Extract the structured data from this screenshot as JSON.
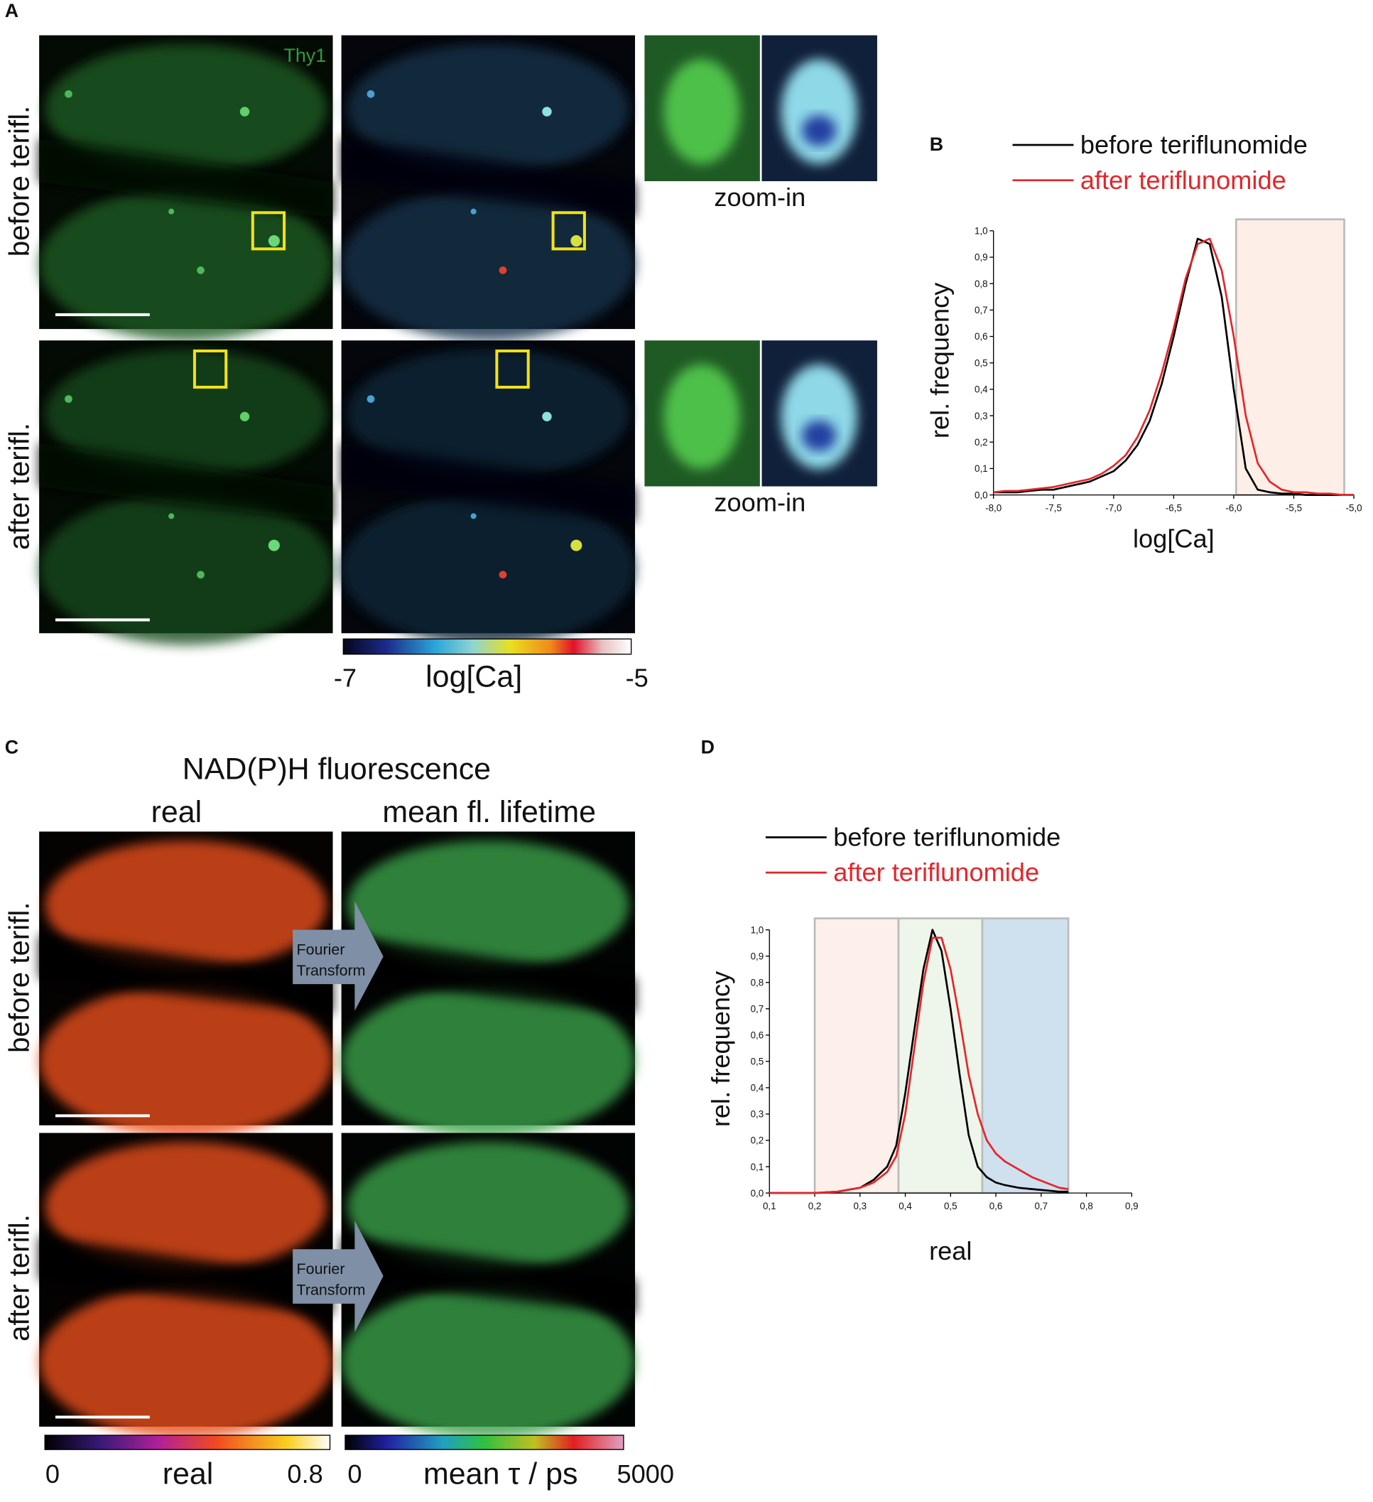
{
  "panel_a": {
    "label": "A",
    "stain": "Thy1",
    "rows": [
      "before terifl.",
      "after terifl."
    ],
    "zoom": [
      "zoom-in",
      "zoom-in"
    ],
    "colorbar": {
      "min": "-7",
      "title": "log[Ca]",
      "max": "-5"
    }
  },
  "panel_c": {
    "label": "C",
    "title": "NAD(P)H fluorescence",
    "columns": [
      "real",
      "mean fl. lifetime"
    ],
    "rows": [
      "before terifl.",
      "after terifl."
    ],
    "arrows": [
      [
        "Fourier",
        "Transform"
      ],
      [
        "Fourier",
        "Transform"
      ]
    ],
    "colorbars": [
      {
        "min": "0",
        "title": "real",
        "max": "0.8"
      },
      {
        "min": "0",
        "title": "mean τ / ps",
        "max": "5000"
      }
    ]
  },
  "chart_data": [
    {
      "type": "line",
      "panel_label": "B",
      "xlabel": "log[Ca]",
      "ylabel": "rel. frequency",
      "x": [
        -8.0,
        -7.9,
        -7.8,
        -7.7,
        -7.6,
        -7.5,
        -7.4,
        -7.3,
        -7.2,
        -7.1,
        -7.0,
        -6.9,
        -6.8,
        -6.7,
        -6.6,
        -6.5,
        -6.4,
        -6.3,
        -6.2,
        -6.1,
        -6.0,
        -5.9,
        -5.8,
        -5.7,
        -5.6,
        -5.5,
        -5.4,
        -5.3,
        -5.2,
        -5.1,
        -5.0
      ],
      "series": [
        {
          "name": "before teriflunomide",
          "color": "#000000",
          "values": [
            0.01,
            0.01,
            0.01,
            0.015,
            0.02,
            0.02,
            0.03,
            0.04,
            0.05,
            0.07,
            0.09,
            0.13,
            0.19,
            0.28,
            0.42,
            0.6,
            0.8,
            0.97,
            0.95,
            0.75,
            0.4,
            0.1,
            0.02,
            0.01,
            0.005,
            0.005,
            0,
            0,
            0,
            0,
            0
          ]
        },
        {
          "name": "after teriflunomide",
          "color": "#e3262b",
          "values": [
            0.01,
            0.015,
            0.015,
            0.02,
            0.025,
            0.03,
            0.04,
            0.05,
            0.06,
            0.08,
            0.11,
            0.15,
            0.22,
            0.32,
            0.46,
            0.63,
            0.82,
            0.95,
            0.97,
            0.85,
            0.6,
            0.3,
            0.12,
            0.05,
            0.02,
            0.01,
            0.01,
            0.005,
            0.005,
            0,
            0
          ]
        }
      ],
      "xlim": [
        -8,
        -5
      ],
      "ylim": [
        0,
        1
      ],
      "xticks": [
        {
          "value": -8,
          "label": "-8,0"
        },
        {
          "value": -7.5,
          "label": "-7,5"
        },
        {
          "value": -7,
          "label": "-7,0"
        },
        {
          "value": -6.5,
          "label": "-6,5"
        },
        {
          "value": -6,
          "label": "-6,0"
        },
        {
          "value": -5.5,
          "label": "-5,5"
        },
        {
          "value": -5,
          "label": "-5,0"
        }
      ],
      "yticks": [
        {
          "value": 0,
          "label": "0,0"
        },
        {
          "value": 0.1,
          "label": "0,1"
        },
        {
          "value": 0.2,
          "label": "0,2"
        },
        {
          "value": 0.3,
          "label": "0,3"
        },
        {
          "value": 0.4,
          "label": "0,4"
        },
        {
          "value": 0.5,
          "label": "0,5"
        },
        {
          "value": 0.6,
          "label": "0,6"
        },
        {
          "value": 0.7,
          "label": "0,7"
        },
        {
          "value": 0.8,
          "label": "0,8"
        },
        {
          "value": 0.9,
          "label": "0,9"
        },
        {
          "value": 1,
          "label": "1,0"
        }
      ],
      "regions": [
        {
          "from": -5.98,
          "to": -5.08,
          "color": "#fdefe8"
        }
      ]
    },
    {
      "type": "line",
      "panel_label": "D",
      "xlabel": "real",
      "ylabel": "rel. frequency",
      "x": [
        0.1,
        0.15,
        0.2,
        0.25,
        0.3,
        0.33,
        0.36,
        0.38,
        0.4,
        0.42,
        0.44,
        0.46,
        0.48,
        0.5,
        0.52,
        0.54,
        0.56,
        0.58,
        0.6,
        0.62,
        0.65,
        0.68,
        0.71,
        0.74,
        0.76
      ],
      "series": [
        {
          "name": "before teriflunomide",
          "color": "#000000",
          "values": [
            0,
            0,
            0,
            0.005,
            0.02,
            0.05,
            0.1,
            0.18,
            0.38,
            0.62,
            0.85,
            1.0,
            0.92,
            0.7,
            0.45,
            0.22,
            0.1,
            0.06,
            0.04,
            0.03,
            0.02,
            0.015,
            0.01,
            0.005,
            0.005
          ]
        },
        {
          "name": "after teriflunomide",
          "color": "#e3262b",
          "values": [
            0,
            0,
            0,
            0.005,
            0.02,
            0.04,
            0.08,
            0.14,
            0.3,
            0.55,
            0.8,
            0.97,
            0.97,
            0.85,
            0.66,
            0.45,
            0.3,
            0.2,
            0.15,
            0.12,
            0.09,
            0.06,
            0.04,
            0.02,
            0.015
          ]
        }
      ],
      "xlim": [
        0.1,
        0.9
      ],
      "ylim": [
        0,
        1
      ],
      "xticks": [
        {
          "value": 0.1,
          "label": "0,1"
        },
        {
          "value": 0.2,
          "label": "0,2"
        },
        {
          "value": 0.3,
          "label": "0,3"
        },
        {
          "value": 0.4,
          "label": "0,4"
        },
        {
          "value": 0.5,
          "label": "0,5"
        },
        {
          "value": 0.6,
          "label": "0,6"
        },
        {
          "value": 0.7,
          "label": "0,7"
        },
        {
          "value": 0.8,
          "label": "0,8"
        },
        {
          "value": 0.9,
          "label": "0,9"
        }
      ],
      "yticks": [
        {
          "value": 0,
          "label": "0,0"
        },
        {
          "value": 0.1,
          "label": "0,1"
        },
        {
          "value": 0.2,
          "label": "0,2"
        },
        {
          "value": 0.3,
          "label": "0,3"
        },
        {
          "value": 0.4,
          "label": "0,4"
        },
        {
          "value": 0.5,
          "label": "0,5"
        },
        {
          "value": 0.6,
          "label": "0,6"
        },
        {
          "value": 0.7,
          "label": "0,7"
        },
        {
          "value": 0.8,
          "label": "0,8"
        },
        {
          "value": 0.9,
          "label": "0,9"
        },
        {
          "value": 1,
          "label": "1,0"
        }
      ],
      "regions": [
        {
          "from": 0.2,
          "to": 0.385,
          "color": "#fdf0ea"
        },
        {
          "from": 0.385,
          "to": 0.57,
          "color": "#eef5ea"
        },
        {
          "from": 0.57,
          "to": 0.76,
          "color": "#cfe0ef"
        }
      ]
    }
  ]
}
